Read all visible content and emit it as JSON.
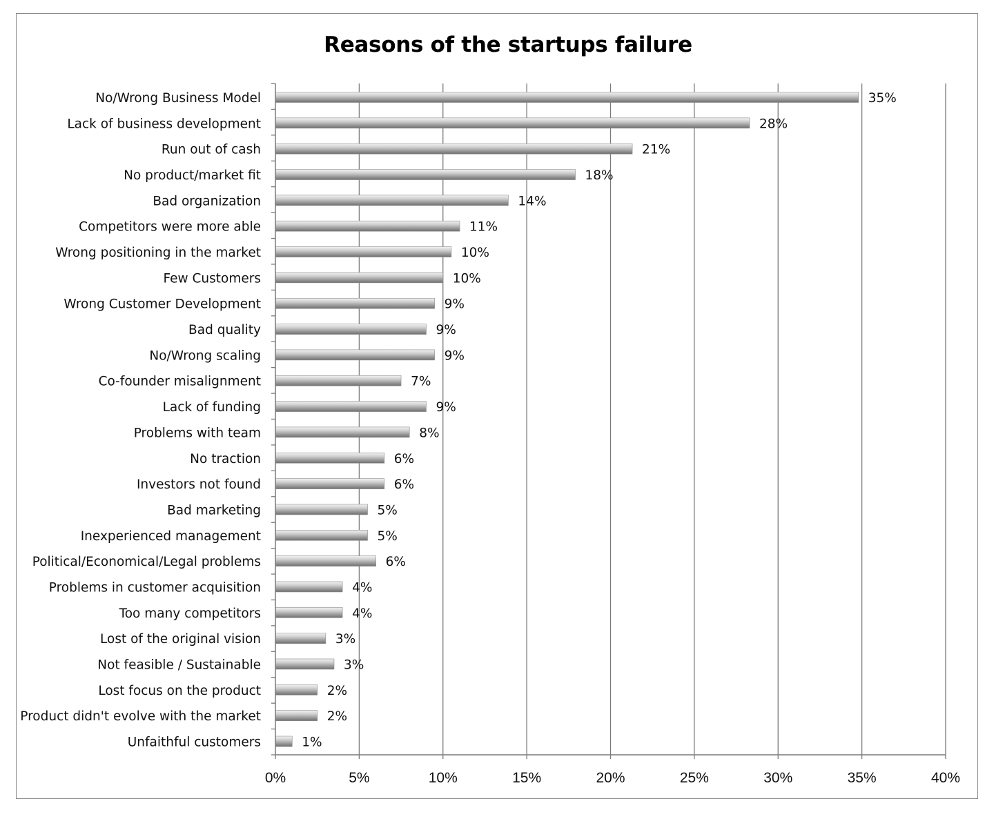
{
  "chart_data": {
    "type": "bar",
    "orientation": "horizontal",
    "title": "Reasons of the startups failure",
    "xlabel": "",
    "ylabel": "",
    "xlim": [
      0,
      0.4
    ],
    "x_ticks": [
      "0%",
      "5%",
      "10%",
      "15%",
      "20%",
      "25%",
      "30%",
      "35%",
      "40%"
    ],
    "grid": "vertical major gridlines",
    "legend": "none",
    "bar_color": "#a8a8a8",
    "categories": [
      "No/Wrong Business Model",
      "Lack of business development",
      "Run out of cash",
      "No product/market fit",
      "Bad organization",
      "Competitors were more able",
      "Wrong positioning in the market",
      "Few Customers",
      "Wrong  Customer Development",
      "Bad quality",
      "No/Wrong scaling",
      "Co-founder misalignment",
      "Lack of funding",
      "Problems with team",
      "No traction",
      "Investors not found",
      "Bad marketing",
      "Inexperienced management",
      "Political/Economical/Legal problems",
      "Problems in customer acquisition",
      "Too many competitors",
      "Lost of the original vision",
      "Not feasible / Sustainable",
      "Lost focus on the product",
      "Product didn't evolve with the market",
      "Unfaithful customers"
    ],
    "values": [
      0.348,
      0.283,
      0.213,
      0.179,
      0.139,
      0.11,
      0.105,
      0.1,
      0.095,
      0.09,
      0.095,
      0.075,
      0.09,
      0.08,
      0.065,
      0.065,
      0.055,
      0.055,
      0.06,
      0.04,
      0.04,
      0.03,
      0.035,
      0.025,
      0.025,
      0.01
    ],
    "data_labels": [
      "35%",
      "28%",
      "21%",
      "18%",
      "14%",
      "11%",
      "10%",
      "10%",
      "9%",
      "9%",
      "9%",
      "7%",
      "9%",
      "8%",
      "6%",
      "6%",
      "5%",
      "5%",
      "6%",
      "4%",
      "4%",
      "3%",
      "3%",
      "2%",
      "2%",
      "1%"
    ]
  }
}
